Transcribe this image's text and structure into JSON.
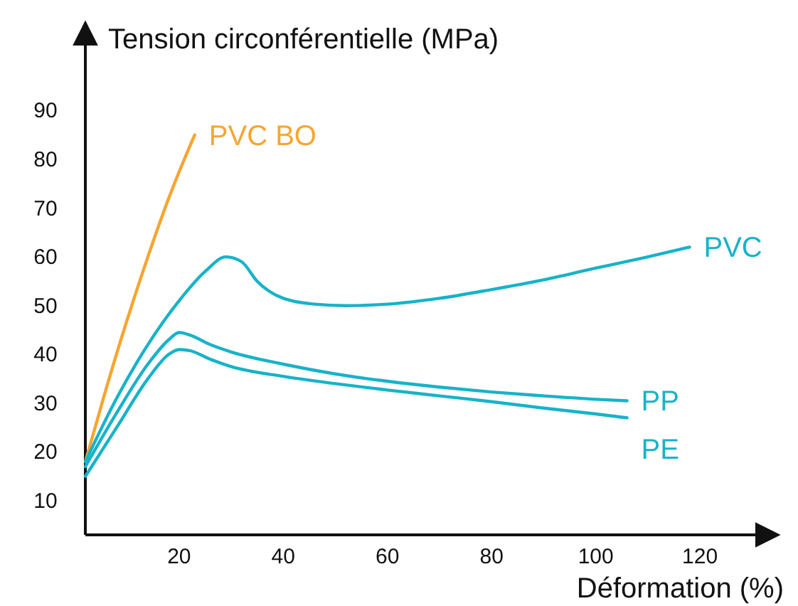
{
  "chart_data": {
    "type": "line",
    "xlabel": "Déformation (%)",
    "ylabel": "Tension circonférentielle (MPa)",
    "xlim": [
      2,
      135
    ],
    "ylim": [
      3,
      108
    ],
    "xticks": [
      20,
      40,
      60,
      80,
      100,
      120
    ],
    "yticks": [
      10,
      20,
      30,
      40,
      50,
      60,
      70,
      80,
      90
    ],
    "grid": false,
    "legend": false,
    "marker": "none",
    "line_style": "solid",
    "series": [
      {
        "name": "PVC BO",
        "color": "#f7a530",
        "x": [
          2,
          6,
          10,
          14,
          18,
          21,
          23
        ],
        "values": [
          18,
          33,
          47,
          60,
          72,
          80,
          85
        ]
      },
      {
        "name": "PVC",
        "color": "#17b3c9",
        "x": [
          2,
          8,
          14,
          20,
          25,
          29,
          32,
          35,
          40,
          46,
          52,
          60,
          70,
          80,
          90,
          100,
          110,
          118
        ],
        "values": [
          18,
          31,
          42,
          51,
          57,
          60,
          59,
          55,
          51.5,
          50.3,
          50,
          50.3,
          51.5,
          53.3,
          55.3,
          57.7,
          60,
          62
        ]
      },
      {
        "name": "PP",
        "color": "#17b3c9",
        "x": [
          2,
          8,
          14,
          18,
          20,
          22,
          26,
          30,
          40,
          50,
          60,
          70,
          80,
          90,
          100,
          106
        ],
        "values": [
          17,
          28,
          38,
          43,
          44.5,
          44,
          42,
          40.5,
          38,
          36,
          34.5,
          33.3,
          32.3,
          31.5,
          30.8,
          30.5
        ]
      },
      {
        "name": "PE",
        "color": "#17b3c9",
        "x": [
          2,
          8,
          14,
          18,
          20,
          22,
          26,
          30,
          40,
          50,
          60,
          70,
          80,
          90,
          100,
          106
        ],
        "values": [
          15,
          25,
          35,
          40,
          41,
          40.8,
          39,
          37.5,
          35.5,
          34,
          32.7,
          31.5,
          30.3,
          29,
          27.8,
          27
        ]
      }
    ]
  }
}
